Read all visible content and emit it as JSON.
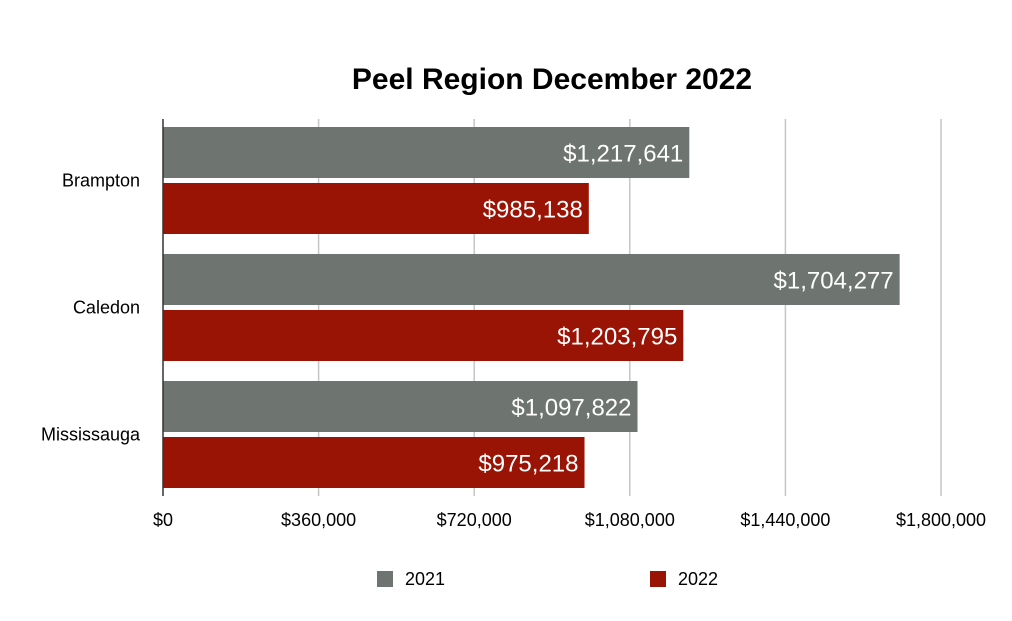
{
  "chart_data": {
    "type": "bar",
    "orientation": "horizontal",
    "title": "Peel Region December 2022",
    "categories": [
      "Brampton",
      "Caledon",
      "Mississauga"
    ],
    "series": [
      {
        "name": "2021",
        "color": "#6e7570",
        "values": [
          1217641,
          1704277,
          1097822
        ],
        "labels": [
          "$1,217,641",
          "$1,704,277",
          "$1,097,822"
        ]
      },
      {
        "name": "2022",
        "color": "#9a1405",
        "values": [
          985138,
          1203795,
          975218
        ],
        "labels": [
          "$985,138",
          "$1,203,795",
          "$975,218"
        ]
      }
    ],
    "xlim": [
      0,
      1800000
    ],
    "x_ticks": [
      0,
      360000,
      720000,
      1080000,
      1440000,
      1800000
    ],
    "x_tick_labels": [
      "$0",
      "$360,000",
      "$720,000",
      "$1,080,000",
      "$1,440,000",
      "$1,800,000"
    ],
    "grid": true,
    "legend_position": "bottom"
  }
}
